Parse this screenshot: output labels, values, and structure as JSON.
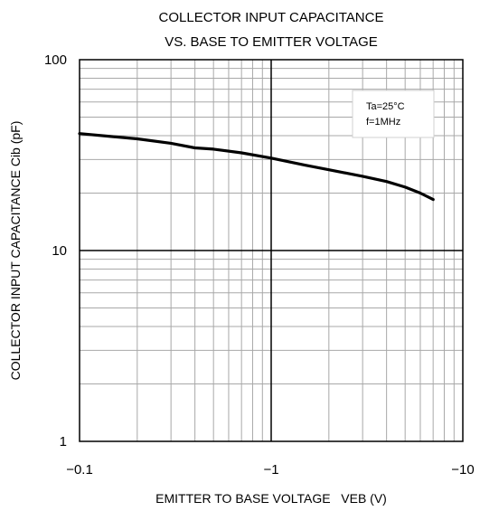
{
  "chart_data": {
    "type": "line",
    "title": [
      "COLLECTOR INPUT CAPACITANCE",
      "VS. BASE TO EMITTER VOLTAGE"
    ],
    "xlabel": "EMITTER TO BASE VOLTAGE   VEB (V)",
    "ylabel": "COLLECTOR INPUT CAPACITANCE  Cib (pF)",
    "x_scale": "log",
    "y_scale": "log",
    "xlim": [
      -0.1,
      -10
    ],
    "ylim": [
      1,
      100
    ],
    "x_ticks": [
      {
        "value": -0.1,
        "label": "−0.1"
      },
      {
        "value": -1,
        "label": "−1"
      },
      {
        "value": -10,
        "label": "−10"
      }
    ],
    "y_ticks": [
      {
        "value": 1,
        "label": "1"
      },
      {
        "value": 10,
        "label": "10"
      },
      {
        "value": 100,
        "label": "100"
      }
    ],
    "grid": true,
    "legend": {
      "placement": "top-right",
      "lines": [
        "Ta=25°C",
        "f=1MHz"
      ]
    },
    "series": [
      {
        "x": [
          -0.1,
          -0.15,
          -0.2,
          -0.3,
          -0.4,
          -0.5,
          -0.7,
          -1.0,
          -1.5,
          -2.0,
          -3.0,
          -4.0,
          -5.0,
          -6.0,
          -7.0
        ],
        "y": [
          41,
          39.5,
          38.5,
          36.5,
          34.5,
          34,
          32.5,
          30.5,
          28,
          26.5,
          24.5,
          23,
          21.5,
          20,
          18.5
        ]
      }
    ]
  }
}
